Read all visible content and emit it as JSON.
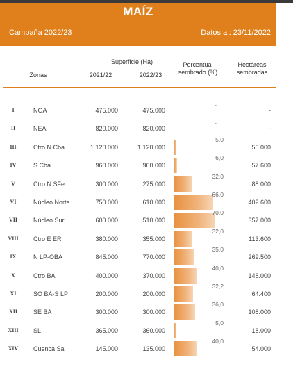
{
  "title": "MAÍZ",
  "campaign": "Campaña 2022/23",
  "data_date": "Datos al: 23/11/2022",
  "columns": {
    "zonas": "Zonas",
    "superficie": "Superficie (Ha)",
    "year1": "2021/22",
    "year2": "2022/23",
    "porcentual": "Porcentual",
    "sembrado": "sembrado (%)",
    "hectareas": "Hectáreas",
    "sembradas": "sembradas"
  },
  "rows": [
    {
      "roman": "I",
      "zone": "NOA",
      "s1": "475.000",
      "s2": "475.000",
      "pct_label": "-",
      "pct": 0,
      "ha": "-"
    },
    {
      "roman": "II",
      "zone": "NEA",
      "s1": "820.000",
      "s2": "820.000",
      "pct_label": "-",
      "pct": 0,
      "ha": "-"
    },
    {
      "roman": "III",
      "zone": "Ctro N Cba",
      "s1": "1.120.000",
      "s2": "1.120.000",
      "pct_label": "5,0",
      "pct": 5.0,
      "ha": "56.000"
    },
    {
      "roman": "IV",
      "zone": "S Cba",
      "s1": "960.000",
      "s2": "960.000",
      "pct_label": "6,0",
      "pct": 6.0,
      "ha": "57.600"
    },
    {
      "roman": "V",
      "zone": "Ctro N SFe",
      "s1": "300.000",
      "s2": "275.000",
      "pct_label": "32,0",
      "pct": 32.0,
      "ha": "88.000"
    },
    {
      "roman": "VI",
      "zone": "Núcleo Norte",
      "s1": "750.000",
      "s2": "610.000",
      "pct_label": "66,0",
      "pct": 66.0,
      "ha": "402.600"
    },
    {
      "roman": "VII",
      "zone": "Núcleo Sur",
      "s1": "600.000",
      "s2": "510.000",
      "pct_label": "70,0",
      "pct": 70.0,
      "ha": "357.000"
    },
    {
      "roman": "VIII",
      "zone": "Ctro E ER",
      "s1": "380.000",
      "s2": "355.000",
      "pct_label": "32,0",
      "pct": 32.0,
      "ha": "113.600"
    },
    {
      "roman": "IX",
      "zone": "N LP-OBA",
      "s1": "845.000",
      "s2": "770.000",
      "pct_label": "35,0",
      "pct": 35.0,
      "ha": "269.500"
    },
    {
      "roman": "X",
      "zone": "Ctro BA",
      "s1": "400.000",
      "s2": "370.000",
      "pct_label": "40,0",
      "pct": 40.0,
      "ha": "148.000"
    },
    {
      "roman": "XI",
      "zone": "SO BA-S LP",
      "s1": "200.000",
      "s2": "200.000",
      "pct_label": "32,2",
      "pct": 32.2,
      "ha": "64.400"
    },
    {
      "roman": "XII",
      "zone": "SE BA",
      "s1": "300.000",
      "s2": "300.000",
      "pct_label": "36,0",
      "pct": 36.0,
      "ha": "108.000"
    },
    {
      "roman": "XIII",
      "zone": "SL",
      "s1": "365.000",
      "s2": "360.000",
      "pct_label": "5,0",
      "pct": 5.0,
      "ha": "18.000"
    },
    {
      "roman": "XIV",
      "zone": "Cuenca Sal",
      "s1": "145.000",
      "s2": "135.000",
      "pct_label": "40,0",
      "pct": 40.0,
      "ha": "54.000"
    }
  ],
  "colors": {
    "header": "#e0801c",
    "bar": "#e8913e"
  }
}
